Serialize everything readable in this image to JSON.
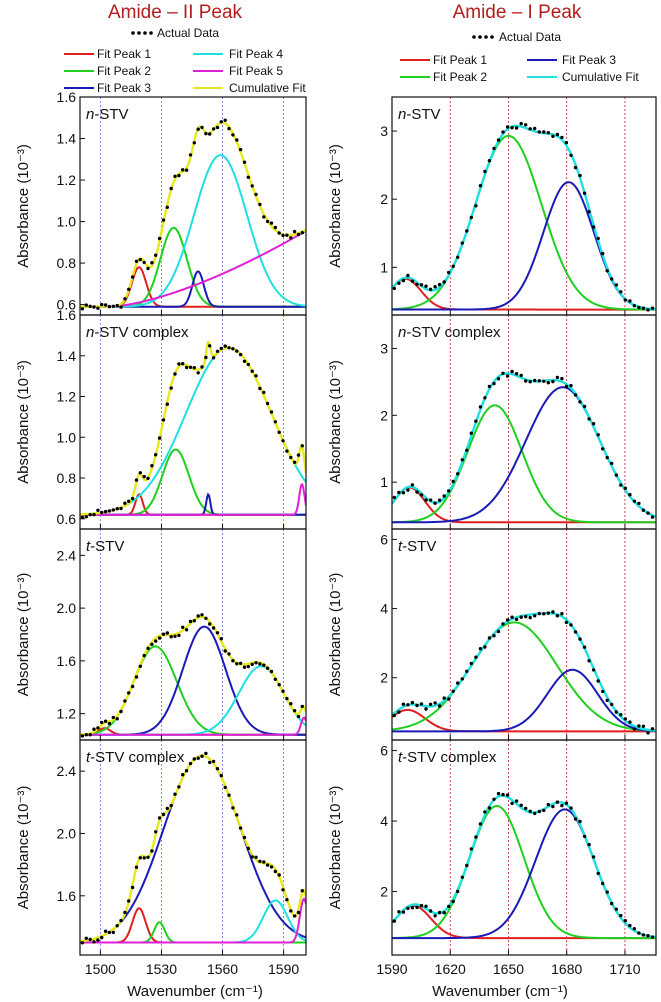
{
  "columns": [
    {
      "title": "Amide – II Peak",
      "xlabel": "Wavenumber (cm⁻¹)",
      "xlim": [
        1490,
        1601
      ],
      "xticks": [
        1500,
        1530,
        1560,
        1590
      ],
      "vlines": [
        1500,
        1530,
        1560,
        1590
      ],
      "vline_color": "#6b6bd8",
      "legend": [
        {
          "label": "Actual Data",
          "color": "#000000",
          "kind": "dots"
        },
        {
          "label": "Fit Peak 1",
          "color": "#e01f1f",
          "kind": "line"
        },
        {
          "label": "Fit Peak 2",
          "color": "#1fd01f",
          "kind": "line"
        },
        {
          "label": "Fit Peak 3",
          "color": "#1a1ab8",
          "kind": "line"
        },
        {
          "label": "Fit Peak 4",
          "color": "#1fe0e0",
          "kind": "line"
        },
        {
          "label": "Fit Peak 5",
          "color": "#e01fd8",
          "kind": "line"
        },
        {
          "label": "Cumulative Fit",
          "color": "#e8e81f",
          "kind": "line"
        }
      ]
    },
    {
      "title": "Amide – I Peak",
      "xlabel": "Wavenumber (cm⁻¹)",
      "xlim": [
        1590,
        1726
      ],
      "xticks": [
        1590,
        1620,
        1650,
        1680,
        1710
      ],
      "vlines": [
        1620,
        1650,
        1680,
        1710
      ],
      "vline_color": "#c02020",
      "legend": [
        {
          "label": "Actual Data",
          "color": "#000000",
          "kind": "dots"
        },
        {
          "label": "Fit Peak 1",
          "color": "#e01f1f",
          "kind": "line"
        },
        {
          "label": "Fit Peak 2",
          "color": "#1fd01f",
          "kind": "line"
        },
        {
          "label": "Fit Peak 3",
          "color": "#1a1ab8",
          "kind": "line"
        },
        {
          "label": "Cumulative Fit",
          "color": "#1fe0e0",
          "kind": "line"
        }
      ]
    }
  ],
  "chart_data": [
    {
      "type": "line",
      "column": 0,
      "row": 0,
      "label_italic": "n",
      "label_rest": "-STV",
      "ylabel": "Absorbance (10⁻³)",
      "ylim": [
        0.55,
        1.6
      ],
      "yticks": [
        0.6,
        0.8,
        1.0,
        1.2,
        1.4,
        1.6
      ],
      "baseline": 0.59,
      "peaks": [
        {
          "name": "Fit Peak 1",
          "color": "#e01f1f",
          "center": 1519,
          "amp": 0.19,
          "width": 3.5
        },
        {
          "name": "Fit Peak 2",
          "color": "#1fd01f",
          "center": 1536,
          "amp": 0.38,
          "width": 6.5
        },
        {
          "name": "Fit Peak 3",
          "color": "#1a1ab8",
          "center": 1548,
          "amp": 0.17,
          "width": 2.8
        },
        {
          "name": "Fit Peak 4",
          "color": "#1fe0e0",
          "center": 1559,
          "amp": 0.73,
          "width": 13
        }
      ],
      "poly": {
        "name": "Fit Peak 5",
        "color": "#e01fd8",
        "from": [
          1505,
          0.59
        ],
        "to": [
          1600,
          0.95
        ],
        "power": 1.5
      },
      "cumulative_color": "#e8e81f"
    },
    {
      "type": "line",
      "column": 0,
      "row": 1,
      "label_italic": "n",
      "label_rest": "-STV complex",
      "ylabel": "Absorbance (10⁻³)",
      "ylim": [
        0.55,
        1.6
      ],
      "yticks": [
        0.6,
        0.8,
        1.0,
        1.2,
        1.4,
        1.6
      ],
      "baseline": 0.62,
      "peaks": [
        {
          "name": "Fit Peak 1",
          "color": "#e01f1f",
          "center": 1519,
          "amp": 0.1,
          "width": 1.8
        },
        {
          "name": "Fit Peak 2",
          "color": "#1fd01f",
          "center": 1537,
          "amp": 0.32,
          "width": 6.5
        },
        {
          "name": "Fit Peak 3",
          "color": "#1a1ab8",
          "center": 1553,
          "amp": 0.1,
          "width": 1.0
        },
        {
          "name": "Fit Peak 4",
          "color": "#1fe0e0",
          "center": 1563,
          "amp": 0.82,
          "width": 21
        },
        {
          "name": "Fit Peak 5",
          "color": "#e01fd8",
          "center": 1599,
          "amp": 0.15,
          "width": 1.3
        }
      ],
      "cumulative_color": "#e8e81f"
    },
    {
      "type": "line",
      "column": 0,
      "row": 2,
      "label_italic": "t",
      "label_rest": "-STV",
      "ylabel": "Absorbance (10⁻³)",
      "ylim": [
        1.0,
        2.6
      ],
      "yticks": [
        1.2,
        1.6,
        2.0,
        2.4
      ],
      "baseline": 1.04,
      "peaks": [
        {
          "name": "Fit Peak 1",
          "color": "#e01f1f",
          "center": 1502,
          "amp": 0.05,
          "width": 3.0
        },
        {
          "name": "Fit Peak 2",
          "color": "#1fd01f",
          "center": 1527,
          "amp": 0.67,
          "width": 10.5
        },
        {
          "name": "Fit Peak 3",
          "color": "#1a1ab8",
          "center": 1551,
          "amp": 0.82,
          "width": 10.5
        },
        {
          "name": "Fit Peak 4",
          "color": "#1fe0e0",
          "center": 1579,
          "amp": 0.52,
          "width": 11
        },
        {
          "name": "Fit Peak 5",
          "color": "#e01fd8",
          "center": 1600,
          "amp": 0.13,
          "width": 1.5
        }
      ],
      "cumulative_color": "#e8e81f"
    },
    {
      "type": "line",
      "column": 0,
      "row": 3,
      "label_italic": "t",
      "label_rest": "-STV complex",
      "ylabel": "Absorbance (10⁻³)",
      "ylim": [
        1.22,
        2.6
      ],
      "yticks": [
        1.6,
        2.0,
        2.4
      ],
      "baseline": 1.3,
      "peaks": [
        {
          "name": "Fit Peak 1",
          "color": "#e01f1f",
          "center": 1519,
          "amp": 0.22,
          "width": 3.2
        },
        {
          "name": "Fit Peak 2",
          "color": "#1fd01f",
          "center": 1529,
          "amp": 0.13,
          "width": 2.6
        },
        {
          "name": "Fit Peak 3",
          "color": "#1a1ab8",
          "center": 1550,
          "amp": 1.2,
          "width": 19
        },
        {
          "name": "Fit Peak 4",
          "color": "#1fe0e0",
          "center": 1586,
          "amp": 0.27,
          "width": 6
        },
        {
          "name": "Fit Peak 5",
          "color": "#e01fd8",
          "center": 1600,
          "amp": 0.28,
          "width": 2
        }
      ],
      "cumulative_color": "#e8e81f"
    },
    {
      "type": "line",
      "column": 1,
      "row": 0,
      "label_italic": "n",
      "label_rest": "-STV",
      "ylabel": "Absorbance (10⁻³)",
      "ylim": [
        0.3,
        3.5
      ],
      "yticks": [
        1,
        2,
        3
      ],
      "baseline": 0.38,
      "peaks": [
        {
          "name": "Fit Peak 1",
          "color": "#e01f1f",
          "center": 1597,
          "amp": 0.45,
          "width": 8
        },
        {
          "name": "Fit Peak 2",
          "color": "#1fd01f",
          "center": 1650,
          "amp": 2.55,
          "width": 17
        },
        {
          "name": "Fit Peak 3",
          "color": "#1a1ab8",
          "center": 1681,
          "amp": 1.87,
          "width": 13
        }
      ],
      "cumulative_color": "#1fe0e0"
    },
    {
      "type": "line",
      "column": 1,
      "row": 1,
      "label_italic": "n",
      "label_rest": "-STV complex",
      "ylabel": "Absorbance (10⁻³)",
      "ylim": [
        0.3,
        3.5
      ],
      "yticks": [
        1,
        2,
        3
      ],
      "baseline": 0.4,
      "peaks": [
        {
          "name": "Fit Peak 1",
          "color": "#e01f1f",
          "center": 1599,
          "amp": 0.52,
          "width": 8
        },
        {
          "name": "Fit Peak 2",
          "color": "#1fd01f",
          "center": 1643,
          "amp": 1.75,
          "width": 14
        },
        {
          "name": "Fit Peak 3",
          "color": "#1a1ab8",
          "center": 1678,
          "amp": 2.02,
          "width": 19
        }
      ],
      "cumulative_color": "#1fe0e0"
    },
    {
      "type": "line",
      "column": 1,
      "row": 2,
      "label_italic": "t",
      "label_rest": "-STV",
      "ylabel": "Absorbance (10⁻³)",
      "ylim": [
        0.2,
        6.3
      ],
      "yticks": [
        2,
        4,
        6
      ],
      "baseline": 0.45,
      "peaks": [
        {
          "name": "Fit Peak 1",
          "color": "#e01f1f",
          "center": 1598,
          "amp": 0.62,
          "width": 9
        },
        {
          "name": "Fit Peak 2",
          "color": "#1fd01f",
          "center": 1653,
          "amp": 3.15,
          "width": 22
        },
        {
          "name": "Fit Peak 3",
          "color": "#1a1ab8",
          "center": 1683,
          "amp": 1.78,
          "width": 13
        }
      ],
      "cumulative_color": "#1fe0e0"
    },
    {
      "type": "line",
      "column": 1,
      "row": 3,
      "label_italic": "t",
      "label_rest": "-STV complex",
      "ylabel": "Absorbance (10⁻³)",
      "ylim": [
        0.2,
        6.3
      ],
      "yticks": [
        2,
        4,
        6
      ],
      "baseline": 0.68,
      "peaks": [
        {
          "name": "Fit Peak 1",
          "color": "#e01f1f",
          "center": 1601,
          "amp": 0.92,
          "width": 9
        },
        {
          "name": "Fit Peak 2",
          "color": "#1fd01f",
          "center": 1644,
          "amp": 3.75,
          "width": 14
        },
        {
          "name": "Fit Peak 3",
          "color": "#1a1ab8",
          "center": 1679,
          "amp": 3.65,
          "width": 15
        }
      ],
      "cumulative_color": "#1fe0e0"
    }
  ]
}
